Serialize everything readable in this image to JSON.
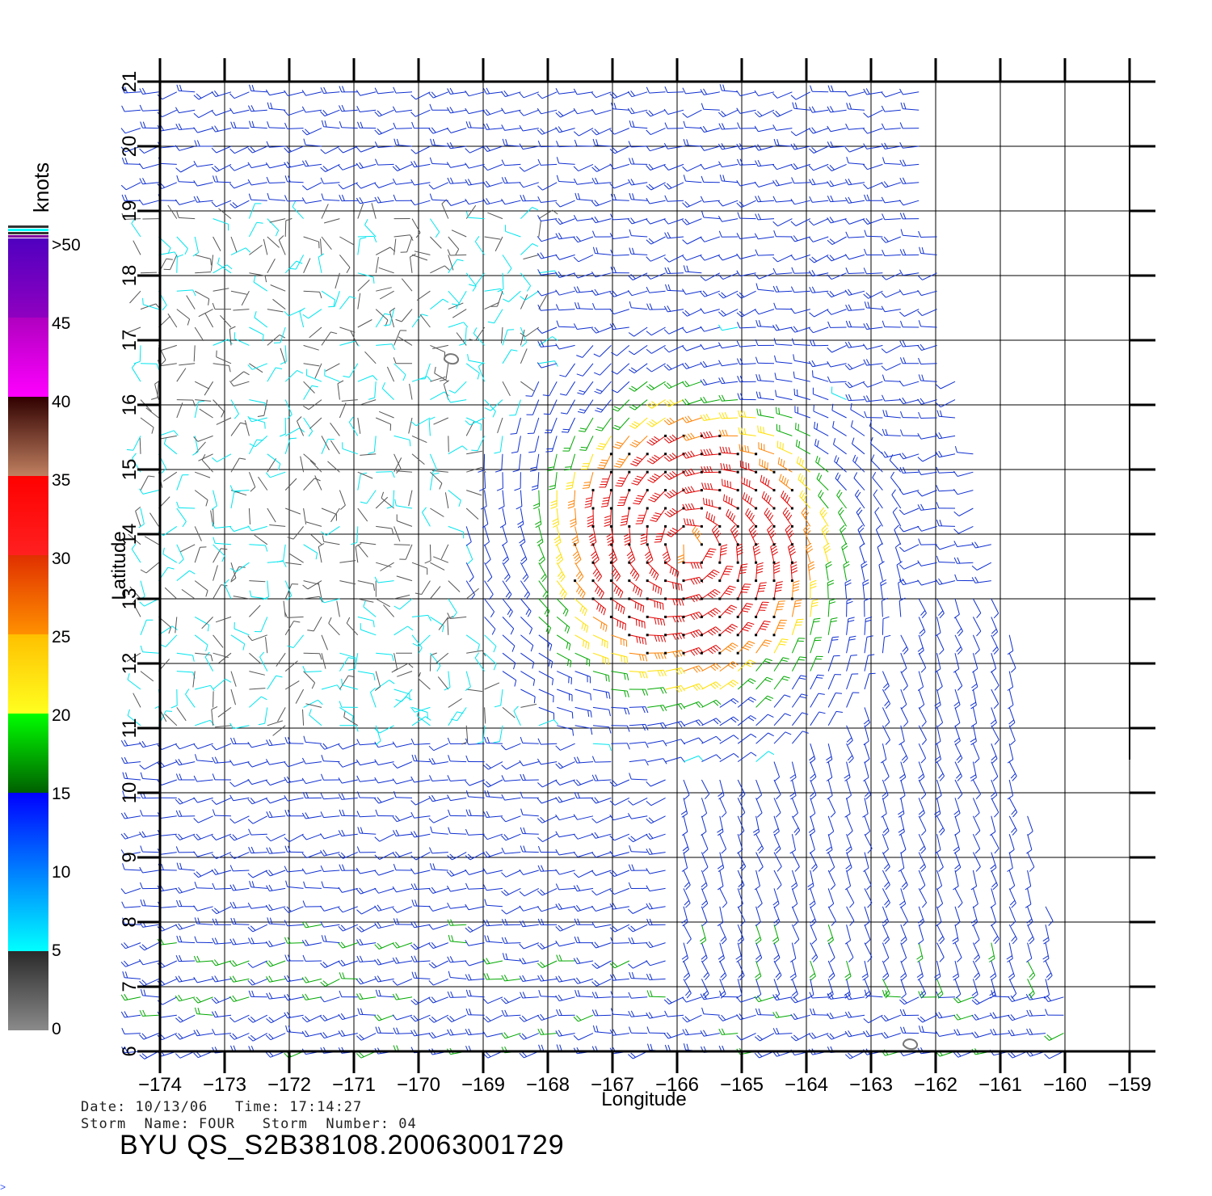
{
  "map": {
    "xlabel": "Longitude",
    "ylabel": "Latitude",
    "lon_ticks": [
      "-174",
      "-173",
      "-172",
      "-171",
      "-170",
      "-169",
      "-168",
      "-167",
      "-166",
      "-165",
      "-164",
      "-163",
      "-162",
      "-161",
      "-160",
      "-159"
    ],
    "lat_ticks": [
      "6",
      "7",
      "8",
      "9",
      "10",
      "11",
      "12",
      "13",
      "14",
      "15",
      "16",
      "17",
      "18",
      "19",
      "20",
      "21"
    ],
    "lon_range": [
      -174,
      -159
    ],
    "lat_range": [
      6,
      21
    ],
    "storm_center": {
      "lon": -165.8,
      "lat": 13.8
    },
    "islands": [
      {
        "lon": -169.5,
        "lat": 16.7
      },
      {
        "lon": -162.4,
        "lat": 6.1
      }
    ],
    "swath_east_edge": [
      {
        "lat": 21,
        "lon": -162.2
      },
      {
        "lat": 17,
        "lon": -161.8
      },
      {
        "lat": 13,
        "lon": -160.9
      },
      {
        "lat": 10,
        "lon": -160.6
      },
      {
        "lat": 6,
        "lon": -159.8
      }
    ]
  },
  "legend": {
    "title": "knots",
    "labels": [
      ">50",
      "45",
      "40",
      "35",
      "30",
      "25",
      "20",
      "15",
      "10",
      "5",
      "0"
    ],
    "colors": {
      "gray": "#555555",
      "cyan": "#00e5ee",
      "blue": "#1030d0",
      "green": "#00a800",
      "yellow": "#ffe000",
      "orange": "#ff8000",
      "red": "#e00000",
      "brown": "#7a3a20",
      "magenta": "#e000e0",
      "purple": "#6000c0"
    }
  },
  "footer": {
    "date_line": "Date: 10/13/06   Time: 17:14:27",
    "storm_line": "Storm  Name: FOUR   Storm  Number: 04",
    "file_title": "BYU  QS_S2B38108.20063001729"
  }
}
